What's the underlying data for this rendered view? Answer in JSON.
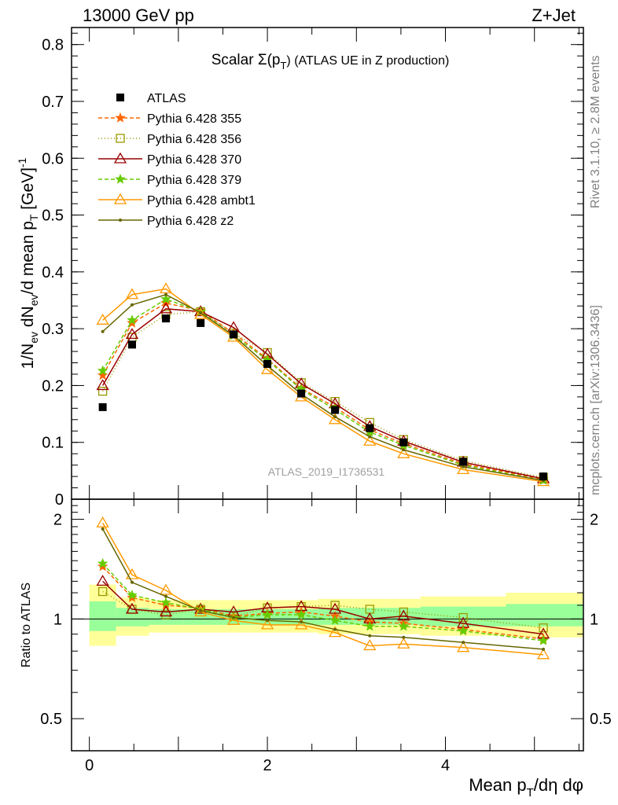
{
  "header": {
    "left": "13000 GeV pp",
    "right": "Z+Jet"
  },
  "side": {
    "rivet": "Rivet 3.1.10, ≥ 2.8M events",
    "mcplots": "mcplots.cern.ch [arXiv:1306.3436]"
  },
  "chart_data": {
    "type": "line",
    "title": "Scalar Σ(p_T) (ATLAS UE in Z production)",
    "title_main": "Scalar Σ(p",
    "title_sub": "T",
    "title_tail": ") (ATLAS UE in Z production)",
    "watermark": "ATLAS_2019_I1736531",
    "xlabel": "Mean p_T/dη dφ",
    "ylabel": "1/N_ev dN_ev/d mean p_T [GeV]^-1",
    "ratio_ylabel": "Ratio to ATLAS",
    "xlim": [
      -0.2,
      5.55
    ],
    "ylim_main": [
      0,
      0.83
    ],
    "ylim_ratio": [
      0.4,
      2.3
    ],
    "ratio_log_scale": true,
    "main_yticks": [
      "0",
      "0.1",
      "0.2",
      "0.3",
      "0.4",
      "0.5",
      "0.6",
      "0.7",
      "0.8"
    ],
    "main_yticks_values": [
      0,
      0.1,
      0.2,
      0.3,
      0.4,
      0.5,
      0.6,
      0.7,
      0.8
    ],
    "ratio_yticks": [
      "0.5",
      "1",
      "2"
    ],
    "ratio_yticks_values": [
      0.5,
      1,
      2
    ],
    "xticks": [
      "0",
      "2",
      "4"
    ],
    "xticks_values": [
      0,
      2,
      4
    ],
    "legend_position": "top-left",
    "x": [
      0.15,
      0.48,
      0.86,
      1.25,
      1.62,
      2.0,
      2.38,
      2.76,
      3.15,
      3.53,
      4.2,
      5.1
    ],
    "bin_edges": [
      0,
      0.3,
      0.67,
      1.06,
      1.44,
      1.81,
      2.19,
      2.57,
      2.96,
      3.34,
      3.72,
      4.68,
      5.55
    ],
    "band_inner": [
      [
        0.92,
        1.13
      ],
      [
        0.95,
        1.08
      ],
      [
        0.96,
        1.07
      ],
      [
        0.96,
        1.07
      ],
      [
        0.96,
        1.07
      ],
      [
        0.96,
        1.07
      ],
      [
        0.96,
        1.07
      ],
      [
        0.96,
        1.08
      ],
      [
        0.96,
        1.08
      ],
      [
        0.96,
        1.08
      ],
      [
        0.95,
        1.09
      ],
      [
        0.95,
        1.11
      ]
    ],
    "band_outer": [
      [
        0.83,
        1.27
      ],
      [
        0.89,
        1.16
      ],
      [
        0.91,
        1.14
      ],
      [
        0.91,
        1.14
      ],
      [
        0.91,
        1.14
      ],
      [
        0.91,
        1.14
      ],
      [
        0.91,
        1.14
      ],
      [
        0.9,
        1.15
      ],
      [
        0.9,
        1.15
      ],
      [
        0.9,
        1.15
      ],
      [
        0.89,
        1.17
      ],
      [
        0.88,
        1.2
      ]
    ],
    "data": {
      "name": "ATLAS",
      "values": [
        0.162,
        0.272,
        0.318,
        0.31,
        0.29,
        0.238,
        0.186,
        0.157,
        0.125,
        0.1,
        0.066,
        0.04
      ]
    },
    "series": [
      {
        "name": "Pythia 6.428 355",
        "color": "#ff6600",
        "dash": "5,3",
        "marker": "star",
        "values": [
          0.218,
          0.31,
          0.345,
          0.332,
          0.292,
          0.247,
          0.195,
          0.162,
          0.122,
          0.098,
          0.062,
          0.035
        ],
        "ratio": [
          1.44,
          1.16,
          1.1,
          1.08,
          1.02,
          1.04,
          1.05,
          1.02,
          0.98,
          0.97,
          0.93,
          0.87
        ]
      },
      {
        "name": "Pythia 6.428 356",
        "color": "#999900",
        "dash": "1,3",
        "marker": "square",
        "values": [
          0.19,
          0.285,
          0.325,
          0.33,
          0.292,
          0.258,
          0.205,
          0.172,
          0.135,
          0.105,
          0.068,
          0.038
        ],
        "ratio": [
          1.21,
          1.07,
          1.03,
          1.07,
          1.02,
          1.08,
          1.09,
          1.1,
          1.07,
          1.05,
          1.01,
          0.94
        ]
      },
      {
        "name": "Pythia 6.428 370",
        "color": "#990000",
        "dash": "",
        "marker": "triangle",
        "values": [
          0.2,
          0.29,
          0.335,
          0.33,
          0.302,
          0.255,
          0.203,
          0.168,
          0.128,
          0.102,
          0.065,
          0.036
        ],
        "ratio": [
          1.3,
          1.07,
          1.05,
          1.07,
          1.05,
          1.08,
          1.09,
          1.07,
          1.0,
          1.02,
          0.97,
          0.9
        ]
      },
      {
        "name": "Pythia 6.428 379",
        "color": "#66cc00",
        "dash": "5,3",
        "marker": "star",
        "values": [
          0.226,
          0.315,
          0.352,
          0.33,
          0.288,
          0.245,
          0.193,
          0.158,
          0.118,
          0.095,
          0.06,
          0.033
        ],
        "ratio": [
          1.47,
          1.18,
          1.12,
          1.07,
          1.01,
          1.03,
          1.03,
          0.99,
          0.95,
          0.95,
          0.92,
          0.86
        ]
      },
      {
        "name": "Pythia 6.428 ambt1",
        "color": "#ff9900",
        "dash": "",
        "marker": "triangle",
        "values": [
          0.315,
          0.36,
          0.37,
          0.325,
          0.285,
          0.228,
          0.18,
          0.14,
          0.102,
          0.08,
          0.052,
          0.031
        ],
        "ratio": [
          1.95,
          1.36,
          1.22,
          1.05,
          0.99,
          0.96,
          0.96,
          0.91,
          0.83,
          0.84,
          0.82,
          0.78
        ]
      },
      {
        "name": "Pythia 6.428 z2",
        "color": "#666600",
        "dash": "",
        "marker": "dot",
        "values": [
          0.295,
          0.342,
          0.36,
          0.328,
          0.288,
          0.235,
          0.185,
          0.145,
          0.11,
          0.087,
          0.057,
          0.033
        ],
        "ratio": [
          1.87,
          1.29,
          1.17,
          1.06,
          1.01,
          0.99,
          0.98,
          0.93,
          0.89,
          0.88,
          0.85,
          0.81
        ]
      }
    ]
  }
}
